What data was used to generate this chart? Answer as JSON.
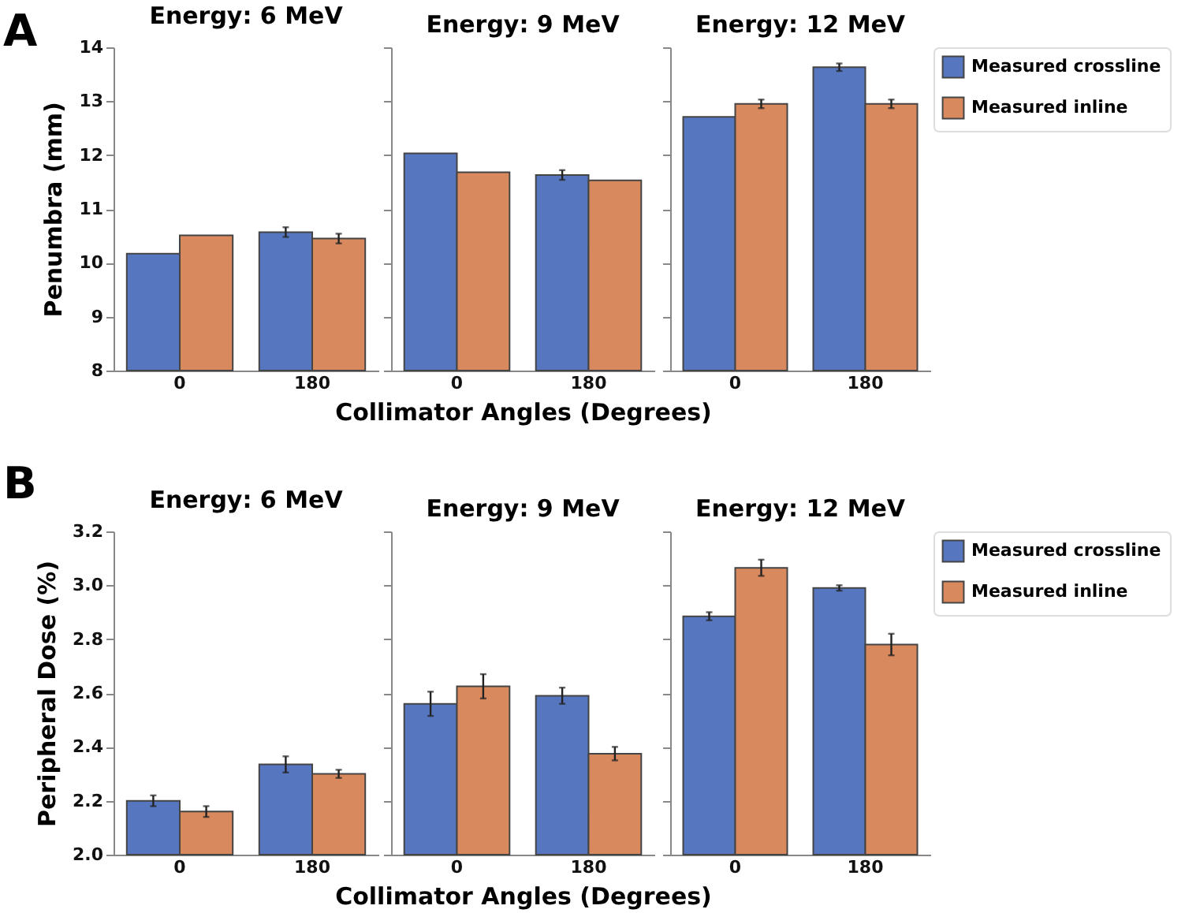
{
  "chart_data": [
    {
      "type": "bar",
      "title": "Energy: 6 MeV",
      "ylabel": "Penumbra (mm)",
      "annotations": [
        "A"
      ],
      "categories": [
        "0",
        "180"
      ],
      "ylim": [
        8,
        14
      ],
      "yticks": [
        8,
        9,
        10,
        11,
        12,
        13,
        14
      ],
      "series": [
        {
          "color": "#5677c0",
          "values": [
            10.17,
            10.57
          ],
          "errors": [
            null,
            0.09
          ]
        },
        {
          "color": "#d8895e",
          "values": [
            10.51,
            10.45
          ],
          "errors": [
            null,
            0.09
          ]
        }
      ]
    },
    {
      "type": "bar",
      "title": "Energy: 9 MeV",
      "xlabel": "Collimator Angles (Degrees)",
      "tick_labels": "x",
      "categories": [
        "0",
        "180"
      ],
      "ylim": [
        8,
        14
      ],
      "yticks": [
        8,
        9,
        10,
        11,
        12,
        13,
        14
      ],
      "series": [
        {
          "color": "#5677c0",
          "values": [
            12.03,
            11.63
          ],
          "errors": [
            null,
            0.09
          ]
        },
        {
          "color": "#d8895e",
          "values": [
            11.68,
            11.53
          ],
          "errors": [
            null,
            null
          ]
        }
      ]
    },
    {
      "type": "bar",
      "title": "Energy: 12 MeV",
      "tick_labels": "x",
      "legend": "right",
      "categories": [
        "0",
        "180"
      ],
      "ylim": [
        8,
        14
      ],
      "yticks": [
        8,
        9,
        10,
        11,
        12,
        13,
        14
      ],
      "series": [
        {
          "name": "Measured crossline",
          "color": "#5677c0",
          "values": [
            12.71,
            13.63
          ],
          "errors": [
            null,
            0.07
          ]
        },
        {
          "name": "Measured inline",
          "color": "#d8895e",
          "values": [
            12.95,
            12.95
          ],
          "errors": [
            0.08,
            0.08
          ]
        }
      ]
    },
    {
      "type": "bar",
      "title": "Energy: 6 MeV",
      "ylabel": "Peripheral Dose (%)",
      "annotations": [
        "B"
      ],
      "categories": [
        "0",
        "180"
      ],
      "ylim": [
        2.0,
        3.2
      ],
      "yticks": [
        {
          "value": 2.0,
          "label": "2.0"
        },
        2.2,
        2.4,
        2.6,
        2.8,
        {
          "value": 3.0,
          "label": "3.0"
        },
        3.2
      ],
      "series": [
        {
          "color": "#5677c0",
          "values": [
            2.2,
            2.335
          ],
          "errors": [
            0.02,
            0.03
          ]
        },
        {
          "color": "#d8895e",
          "values": [
            2.16,
            2.3
          ],
          "errors": [
            0.02,
            0.015
          ]
        }
      ]
    },
    {
      "type": "bar",
      "title": "Energy: 9 MeV",
      "xlabel": "Collimator Angles (Degrees)",
      "tick_labels": "x",
      "categories": [
        "0",
        "180"
      ],
      "ylim": [
        2.0,
        3.2
      ],
      "yticks": [
        2,
        2.2,
        2.4,
        2.6,
        2.8,
        3,
        3.2
      ],
      "series": [
        {
          "color": "#5677c0",
          "values": [
            2.56,
            2.59
          ],
          "errors": [
            0.045,
            0.03
          ]
        },
        {
          "color": "#d8895e",
          "values": [
            2.625,
            2.375
          ],
          "errors": [
            0.045,
            0.025
          ]
        }
      ]
    },
    {
      "type": "bar",
      "title": "Energy: 12 MeV",
      "tick_labels": "x",
      "legend": "right",
      "categories": [
        "0",
        "180"
      ],
      "ylim": [
        2.0,
        3.2
      ],
      "yticks": [
        2,
        2.2,
        2.4,
        2.6,
        2.8,
        3,
        3.2
      ],
      "series": [
        {
          "name": "Measured crossline",
          "color": "#5677c0",
          "values": [
            2.885,
            2.99
          ],
          "errors": [
            0.015,
            0.01
          ]
        },
        {
          "name": "Measured inline",
          "color": "#d8895e",
          "values": [
            3.065,
            2.78
          ],
          "errors": [
            0.03,
            0.04
          ]
        }
      ]
    }
  ]
}
